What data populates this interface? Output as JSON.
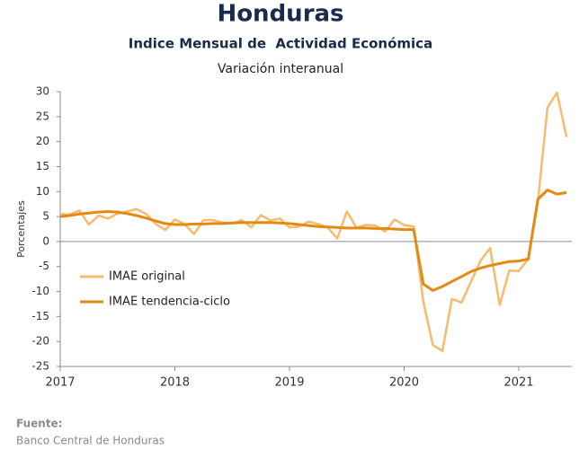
{
  "chart_data": {
    "type": "line",
    "title": "Honduras",
    "subtitle": "Indice Mensual de  Actividad Económica",
    "caption": "Variación interanual",
    "ylabel": "Porcentajes",
    "categories": [
      "2017",
      null,
      null,
      null,
      null,
      null,
      null,
      null,
      null,
      null,
      null,
      null,
      "2018",
      null,
      null,
      null,
      null,
      null,
      null,
      null,
      null,
      null,
      null,
      null,
      "2019",
      null,
      null,
      null,
      null,
      null,
      null,
      null,
      null,
      null,
      null,
      null,
      "2020",
      null,
      null,
      null,
      null,
      null,
      null,
      null,
      null,
      null,
      null,
      null,
      "2021",
      null,
      null,
      null,
      null,
      null
    ],
    "series": [
      {
        "name": "IMAE original",
        "color": "#f7bb6e",
        "values": [
          5.5,
          5.4,
          6.2,
          3.4,
          5.2,
          4.6,
          5.6,
          6.0,
          6.5,
          5.5,
          3.5,
          2.3,
          4.4,
          3.5,
          1.5,
          4.3,
          4.3,
          3.8,
          3.6,
          4.3,
          2.8,
          5.3,
          4.2,
          4.6,
          2.8,
          3.0,
          4.0,
          3.5,
          2.8,
          0.6,
          6.0,
          2.8,
          3.3,
          3.2,
          2.0,
          4.4,
          3.3,
          3.0,
          -12,
          -20.7,
          -21.9,
          -11.5,
          -12.2,
          -8,
          -3.8,
          -1.3,
          -12.7,
          -5.8,
          -5.9,
          -3.5,
          8,
          26.8,
          29.8,
          20.9
        ]
      },
      {
        "name": "IMAE tendencia-ciclo",
        "color": "#e28a12",
        "values": [
          5.0,
          5.2,
          5.5,
          5.7,
          5.9,
          6.0,
          5.9,
          5.6,
          5.2,
          4.7,
          4.1,
          3.6,
          3.4,
          3.4,
          3.5,
          3.5,
          3.6,
          3.6,
          3.7,
          3.8,
          3.8,
          3.8,
          3.8,
          3.7,
          3.6,
          3.4,
          3.2,
          3.0,
          2.9,
          2.8,
          2.7,
          2.7,
          2.7,
          2.6,
          2.6,
          2.5,
          2.4,
          2.4,
          -8.5,
          -9.8,
          -9,
          -8,
          -7,
          -6,
          -5.3,
          -4.8,
          -4.4,
          -4.0,
          -3.9,
          -3.5,
          8.5,
          10.3,
          9.5,
          9.8
        ]
      }
    ],
    "ylim": [
      -25,
      30
    ],
    "yticks": [
      -25,
      -20,
      -15,
      -10,
      -5,
      0,
      5,
      10,
      15,
      20,
      25,
      30
    ],
    "grid": false,
    "legend": "left"
  },
  "source": {
    "label": "Fuente:",
    "text": "Banco Central de Honduras"
  }
}
